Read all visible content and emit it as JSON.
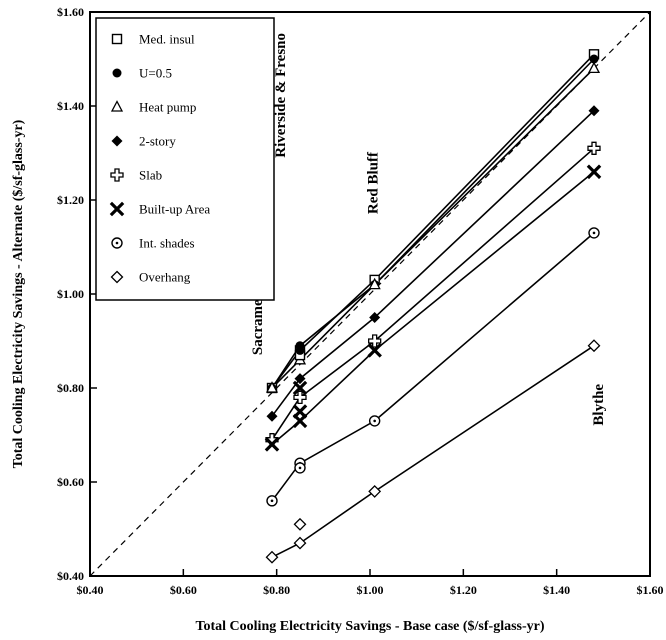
{
  "chart_data": {
    "type": "line",
    "xlabel": "Total Cooling Electricity Savings - Base case ($/sf-glass-yr)",
    "ylabel": "Total Cooling Electricity Savings - Alternate ($/sf-glass-yr)",
    "xlim": [
      0.4,
      1.6
    ],
    "ylim": [
      0.4,
      1.6
    ],
    "x_ticks": [
      "$0.40",
      "$0.60",
      "$0.80",
      "$1.00",
      "$1.20",
      "$1.40",
      "$1.60"
    ],
    "y_ticks": [
      "$0.40",
      "$0.60",
      "$0.80",
      "$1.00",
      "$1.20",
      "$1.40",
      "$1.60"
    ],
    "reference_line": "dashed 1:1 diagonal",
    "legend_position": "top-left",
    "city_labels": [
      {
        "text": "Sacramento",
        "x": 0.79
      },
      {
        "text": "Riverside & Fresno",
        "x": 0.85
      },
      {
        "text": "Red Bluff",
        "x": 1.01
      },
      {
        "text": "Blythe",
        "x": 1.48
      }
    ],
    "series": [
      {
        "name": "Med. insul",
        "marker": "square-open",
        "x": [
          0.79,
          0.85,
          1.01,
          1.48
        ],
        "y": [
          0.8,
          0.88,
          1.03,
          1.51
        ]
      },
      {
        "name": "U=0.5",
        "marker": "circle-filled",
        "x": [
          0.79,
          0.85,
          1.01,
          1.48
        ],
        "y": [
          0.8,
          0.89,
          1.02,
          1.5
        ]
      },
      {
        "name": "Heat pump",
        "marker": "triangle-open",
        "x": [
          0.79,
          0.85,
          1.01,
          1.48
        ],
        "y": [
          0.8,
          0.86,
          1.02,
          1.48
        ]
      },
      {
        "name": "2-story",
        "marker": "diamond-filled",
        "x": [
          0.79,
          0.85,
          1.01,
          1.48
        ],
        "y": [
          0.74,
          0.82,
          0.95,
          1.39
        ]
      },
      {
        "name": "Slab",
        "marker": "cross-open",
        "x": [
          0.79,
          0.85,
          1.01,
          1.48
        ],
        "y": [
          0.69,
          0.78,
          0.9,
          1.31
        ]
      },
      {
        "name": "Built-up Area",
        "marker": "x-bold",
        "x": [
          0.79,
          0.85,
          1.01,
          1.48
        ],
        "y": [
          0.68,
          0.73,
          0.88,
          1.26
        ]
      },
      {
        "name": "Int. shades",
        "marker": "circle-dot",
        "x": [
          0.79,
          0.85,
          1.01,
          1.48
        ],
        "y": [
          0.56,
          0.64,
          0.73,
          1.13
        ]
      },
      {
        "name": "Overhang",
        "marker": "diamond-open",
        "x": [
          0.79,
          0.85,
          1.01,
          1.48
        ],
        "y": [
          0.44,
          0.47,
          0.58,
          0.89
        ]
      }
    ],
    "extra_points": [
      {
        "series": "Built-up Area",
        "x": 0.85,
        "y": 0.75
      },
      {
        "series": "Built-up Area",
        "x": 0.85,
        "y": 0.8
      },
      {
        "series": "Int. shades",
        "x": 0.85,
        "y": 0.63
      },
      {
        "series": "Overhang",
        "x": 0.85,
        "y": 0.51
      },
      {
        "series": "Med. insul",
        "x": 0.85,
        "y": 0.87
      },
      {
        "series": "U=0.5",
        "x": 0.85,
        "y": 0.88
      }
    ]
  }
}
